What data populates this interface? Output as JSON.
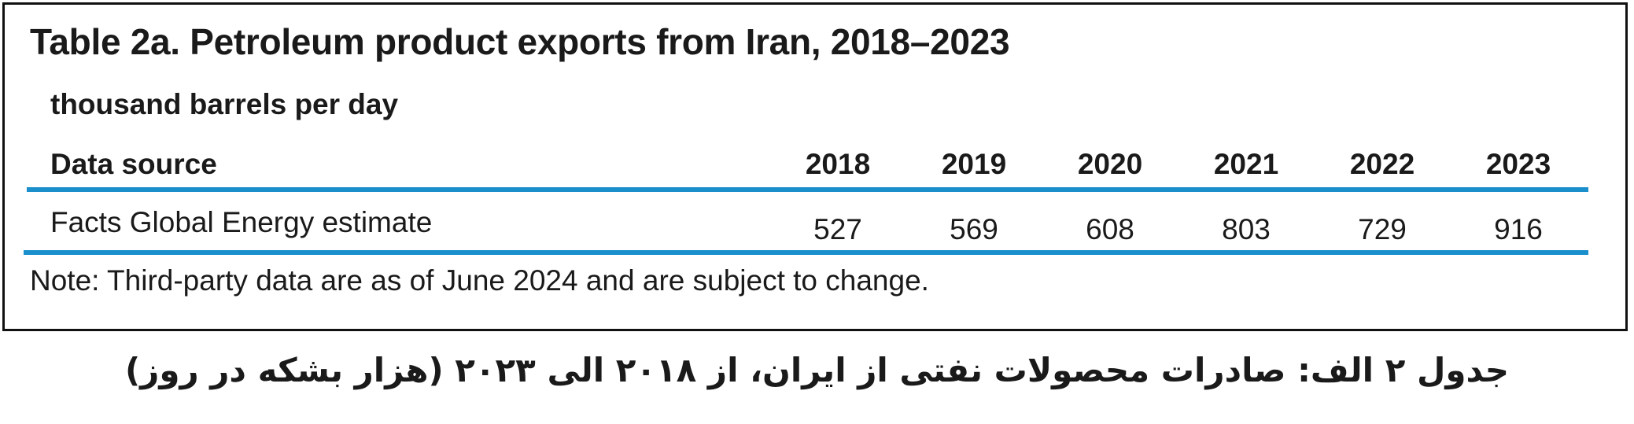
{
  "table": {
    "title": "Table 2a. Petroleum product exports from Iran, 2018–2023",
    "units": "thousand barrels per day",
    "header_label": "Data source",
    "years": [
      "2018",
      "2019",
      "2020",
      "2021",
      "2022",
      "2023"
    ],
    "rows": [
      {
        "label": "Facts Global Energy estimate",
        "values": [
          "527",
          "569",
          "608",
          "803",
          "729",
          "916"
        ]
      }
    ],
    "note": "Note: Third-party data are as of June 2024 and are subject to change.",
    "rule_color": "#1a8fcc"
  },
  "caption_fa": "جدول ۲ الف: صادرات محصولات نفتی از ایران، از ۲۰۱۸ الی ۲۰۲۳ (هزار بشکه در روز)"
}
